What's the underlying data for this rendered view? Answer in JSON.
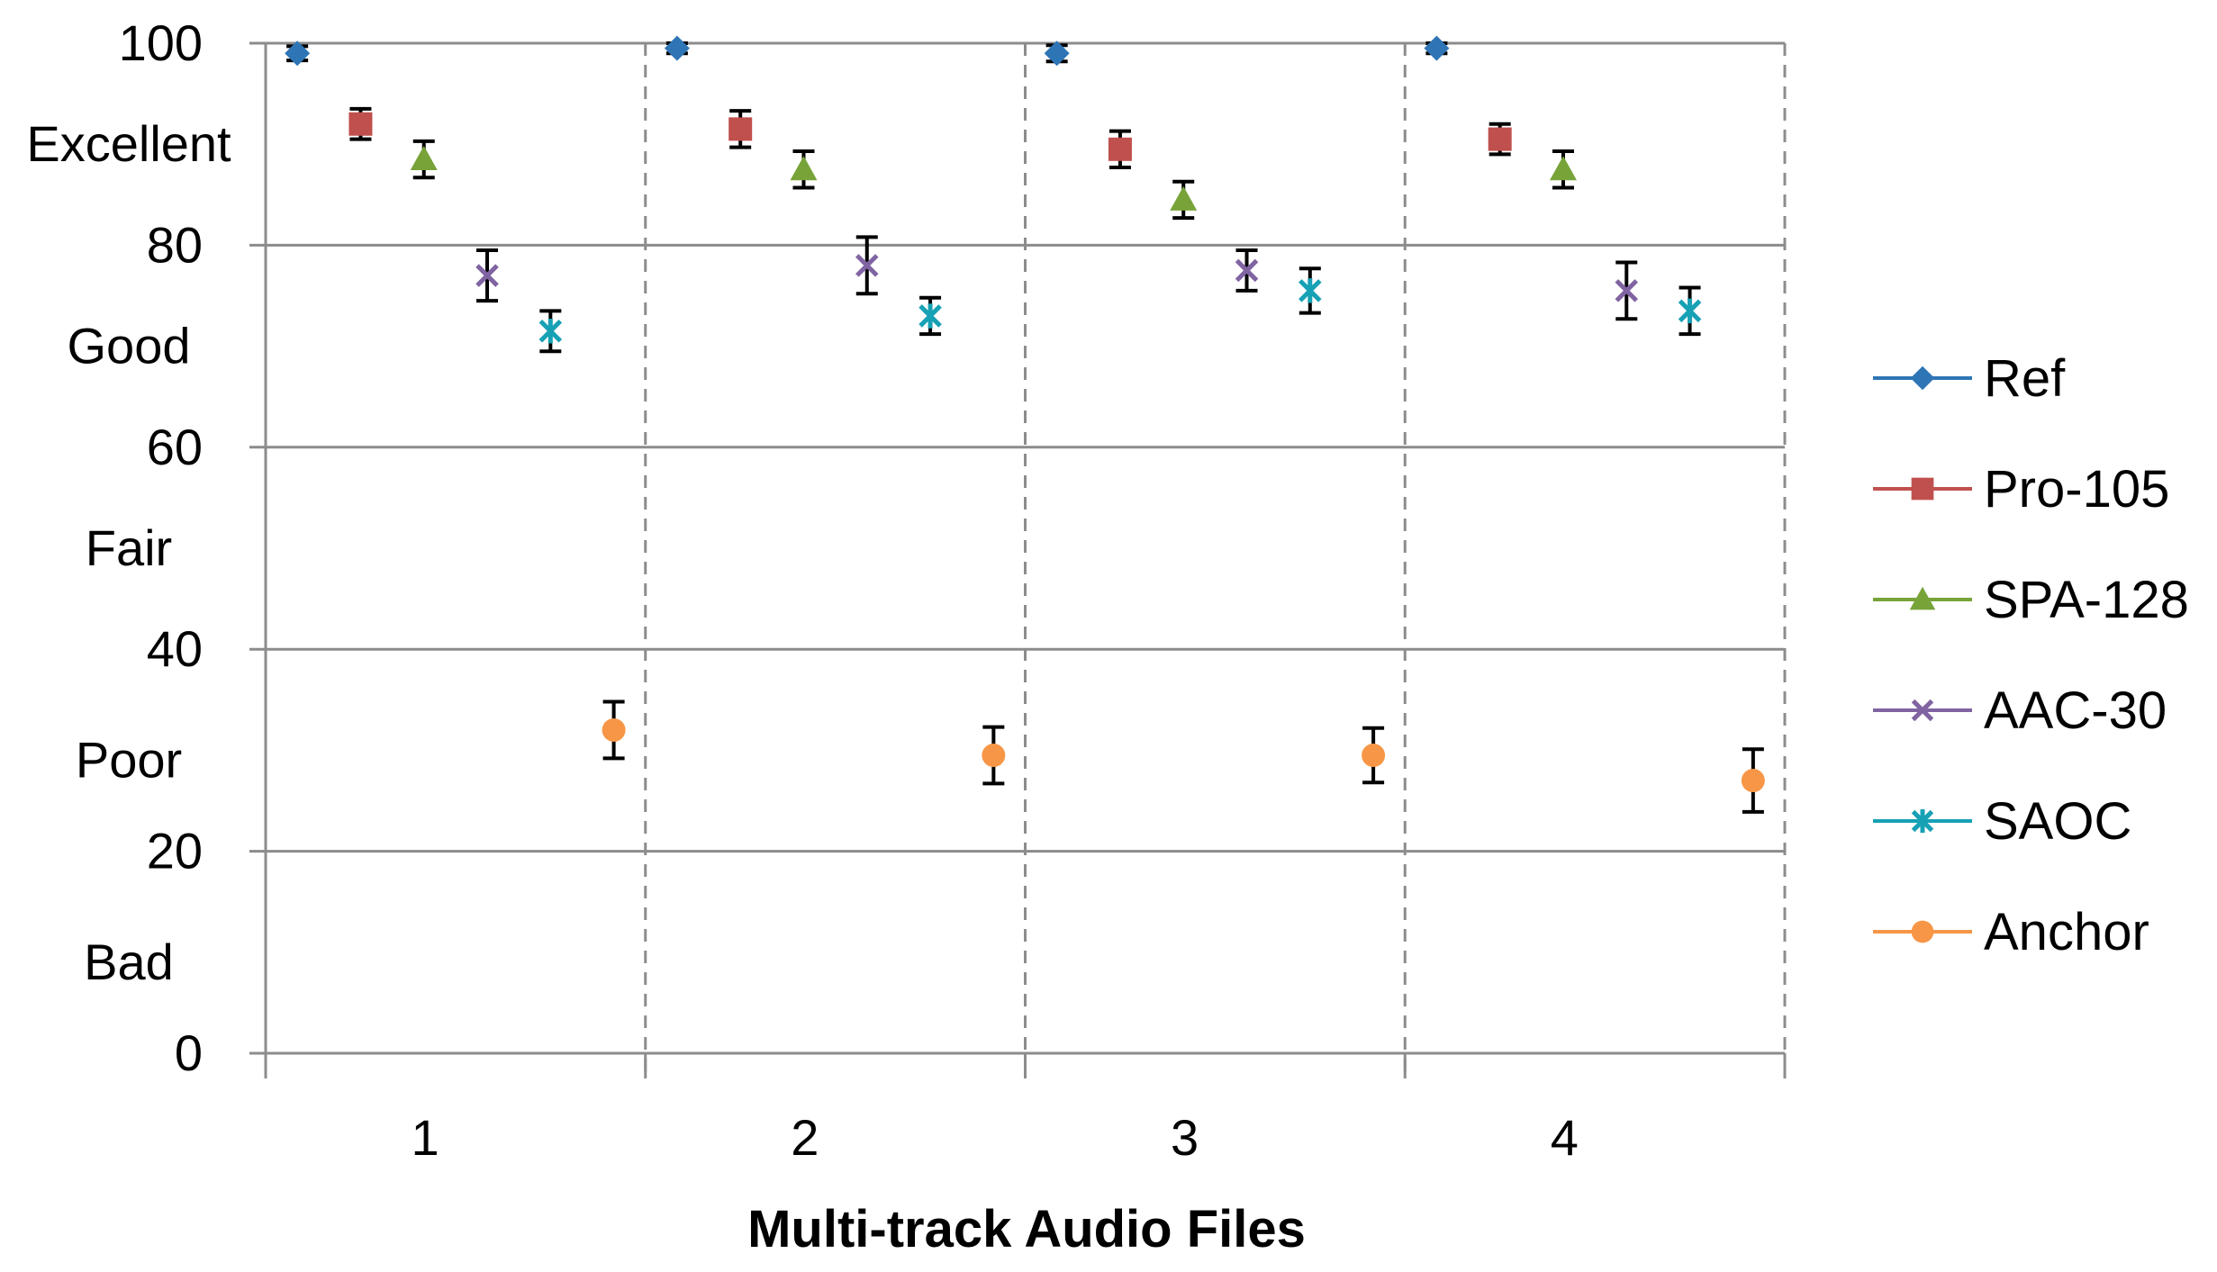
{
  "chart_data": {
    "type": "scatter",
    "title": "",
    "xlabel": "Multi-track Audio Files",
    "ylabel": "",
    "ylim": [
      0,
      100
    ],
    "y_ticks": [
      0,
      20,
      40,
      60,
      80,
      100
    ],
    "quality_labels": [
      {
        "label": "Excellent",
        "y": 90
      },
      {
        "label": "Good",
        "y": 70
      },
      {
        "label": "Fair",
        "y": 50
      },
      {
        "label": "Poor",
        "y": 29
      },
      {
        "label": "Bad",
        "y": 9
      }
    ],
    "categories": [
      "1",
      "2",
      "3",
      "4"
    ],
    "grid": {
      "horizontal": true,
      "vertical_dashed_separators": true
    },
    "legend_position": "right",
    "series": [
      {
        "name": "Ref",
        "color": "#2e75b6",
        "marker": "diamond",
        "values": [
          99,
          99.5,
          99,
          99.5
        ],
        "errors": [
          0.7,
          0.5,
          0.8,
          0.5
        ]
      },
      {
        "name": "Pro-105",
        "color": "#c0504d",
        "marker": "square",
        "values": [
          92,
          91.5,
          89.5,
          90.5
        ],
        "errors": [
          1.5,
          1.8,
          1.8,
          1.5
        ]
      },
      {
        "name": "SPA-128",
        "color": "#77a338",
        "marker": "triangle",
        "values": [
          88.5,
          87.5,
          84.5,
          87.5
        ],
        "errors": [
          1.8,
          1.8,
          1.8,
          1.8
        ]
      },
      {
        "name": "AAC-30",
        "color": "#8064a2",
        "marker": "x",
        "values": [
          77,
          78,
          77.5,
          75.5
        ],
        "errors": [
          2.5,
          2.8,
          2.0,
          2.8
        ]
      },
      {
        "name": "SAOC",
        "color": "#17a1b5",
        "marker": "star",
        "values": [
          71.5,
          73,
          75.5,
          73.5
        ],
        "errors": [
          2.0,
          1.8,
          2.2,
          2.3
        ]
      },
      {
        "name": "Anchor",
        "color": "#f79646",
        "marker": "circle",
        "values": [
          32,
          29.5,
          29.5,
          27
        ],
        "errors": [
          2.8,
          2.8,
          2.7,
          3.1
        ]
      }
    ]
  }
}
